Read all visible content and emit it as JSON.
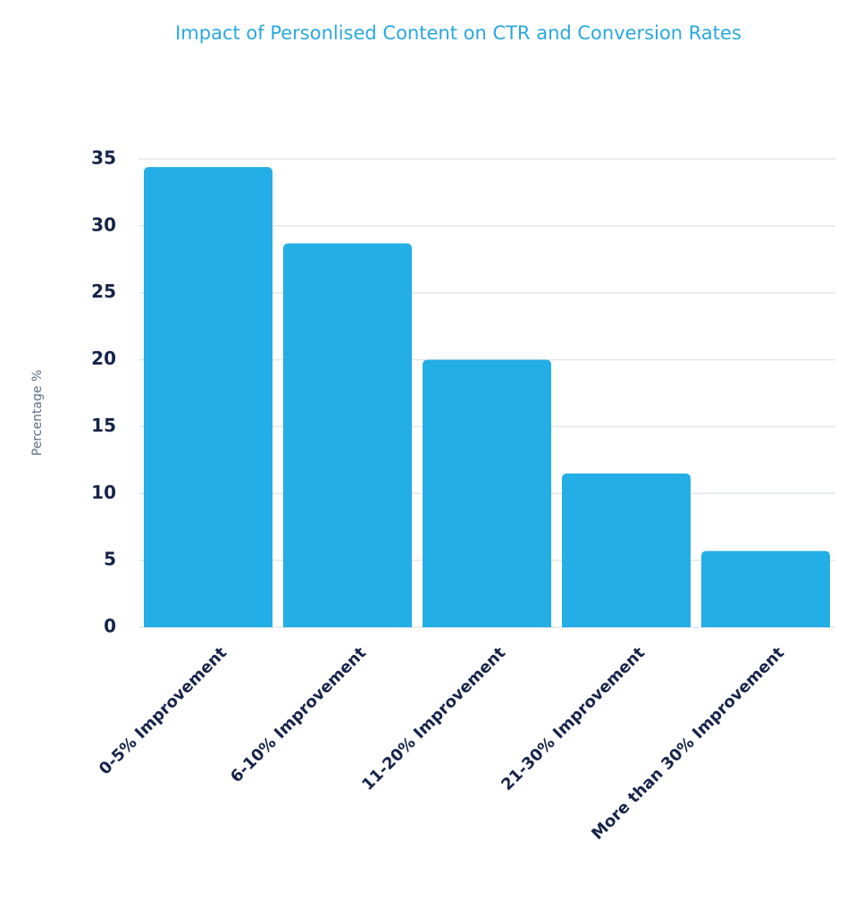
{
  "chart_data": {
    "type": "bar",
    "title": "Impact of Personlised Content on CTR and Conversion Rates",
    "y_label": "Percentage %",
    "categories": [
      "0-5% Improvement",
      "6-10% Improvement",
      "11-20% Improvement",
      "21-30% Improvement",
      "More than 30% Improvement"
    ],
    "values": [
      34.4,
      28.7,
      20,
      11.5,
      5.7
    ],
    "color": "#23aee5",
    "ylim": [
      0,
      35
    ],
    "yticks": [
      0,
      5,
      10,
      15,
      20,
      25,
      30,
      35
    ],
    "grid": true
  }
}
